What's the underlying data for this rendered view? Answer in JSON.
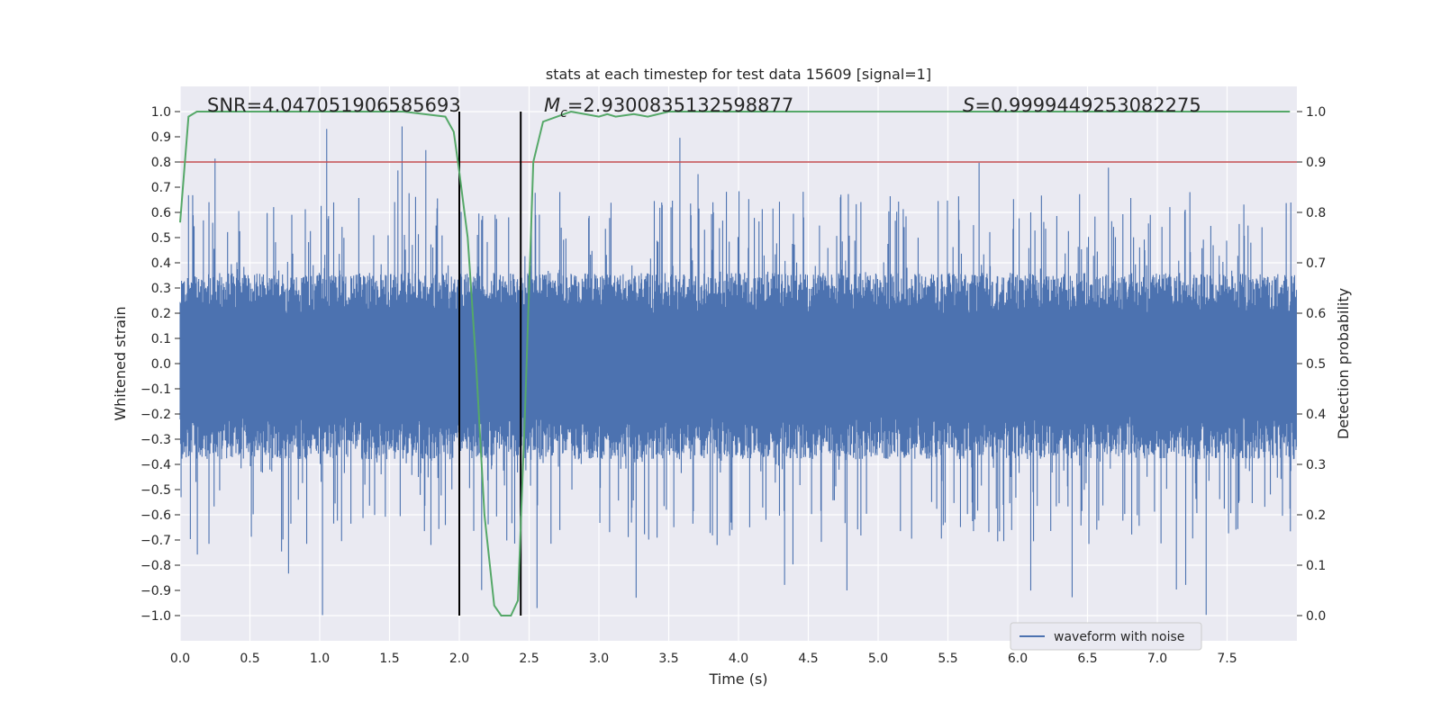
{
  "chart_data": {
    "type": "line",
    "title": "stats at each timestep for test data 15609 [signal=1]",
    "xlabel": "Time (s)",
    "ylabel_left": "Whitened strain",
    "ylabel_right": "Detection probability",
    "xlim": [
      0.0,
      8.0
    ],
    "ylim_left": [
      -1.1,
      1.1
    ],
    "ylim_right": [
      -0.05,
      1.05
    ],
    "x_ticks": [
      0.0,
      0.5,
      1.0,
      1.5,
      2.0,
      2.5,
      3.0,
      3.5,
      4.0,
      4.5,
      5.0,
      5.5,
      6.0,
      6.5,
      7.0,
      7.5
    ],
    "x_tick_labels": [
      "0.0",
      "0.5",
      "1.0",
      "1.5",
      "2.0",
      "2.5",
      "3.0",
      "3.5",
      "4.0",
      "4.5",
      "5.0",
      "5.5",
      "6.0",
      "6.5",
      "7.0",
      "7.5"
    ],
    "y_left_ticks": [
      1.0,
      0.9,
      0.8,
      0.7,
      0.6,
      0.5,
      0.4,
      0.3,
      0.2,
      0.1,
      0.0,
      -0.1,
      -0.2,
      -0.3,
      -0.4,
      -0.5,
      -0.6,
      -0.7,
      -0.8,
      -0.9,
      -1.0
    ],
    "y_left_tick_labels": [
      "1.0",
      "0.9",
      "0.8",
      "0.7",
      "0.6",
      "0.5",
      "0.4",
      "0.3",
      "0.2",
      "0.1",
      "0.0",
      "−0.1",
      "−0.2",
      "−0.3",
      "−0.4",
      "−0.5",
      "−0.6",
      "−0.7",
      "−0.8",
      "−0.9",
      "−1.0"
    ],
    "y_right_ticks": [
      1.0,
      0.9,
      0.8,
      0.7,
      0.6,
      0.5,
      0.4,
      0.3,
      0.2,
      0.1,
      0.0
    ],
    "y_right_tick_labels": [
      "1.0",
      "0.9",
      "0.8",
      "0.7",
      "0.6",
      "0.5",
      "0.4",
      "0.3",
      "0.2",
      "0.1",
      "0.0"
    ],
    "grid": true,
    "legend": {
      "placement": "lower-right",
      "entries": [
        "waveform with noise"
      ]
    },
    "annotations": {
      "snr": "SNR=4.047051906585693",
      "mc_symbol": "M",
      "mc_sub": "c",
      "mc_value": "=2.9300835132598877",
      "s_symbol": "S",
      "s_value": "=0.9999449253082275"
    },
    "threshold": {
      "axis": "right",
      "value": 0.9,
      "color": "#c44e52"
    },
    "signal_window": {
      "x_start": 2.0,
      "x_end": 2.44,
      "color": "#000000"
    },
    "waveform": {
      "name": "waveform with noise",
      "axis": "left",
      "color": "#4c72b0",
      "x_range": [
        0.0,
        8.0
      ],
      "typical_band": [
        -0.38,
        0.36
      ],
      "max_excursion": [
        -1.0,
        0.95
      ]
    },
    "detection_probability": {
      "axis": "right",
      "color": "#55a868",
      "x": [
        0.0,
        0.06,
        0.12,
        1.6,
        1.9,
        1.96,
        2.0,
        2.06,
        2.12,
        2.18,
        2.25,
        2.3,
        2.37,
        2.42,
        2.47,
        2.53,
        2.6,
        2.8,
        3.0,
        3.06,
        3.12,
        3.25,
        3.35,
        3.5,
        4.0,
        5.0,
        6.0,
        7.0,
        7.95
      ],
      "y": [
        0.78,
        0.99,
        1.0,
        1.0,
        0.99,
        0.96,
        0.88,
        0.75,
        0.5,
        0.2,
        0.02,
        0.0,
        0.0,
        0.03,
        0.4,
        0.9,
        0.98,
        1.0,
        0.99,
        0.995,
        0.99,
        0.995,
        0.99,
        1.0,
        1.0,
        1.0,
        1.0,
        1.0,
        1.0
      ]
    },
    "colors": {
      "plot_background": "#eaeaf2",
      "grid": "#ffffff",
      "waveform": "#4c72b0",
      "probability": "#55a868",
      "threshold": "#c44e52"
    }
  }
}
